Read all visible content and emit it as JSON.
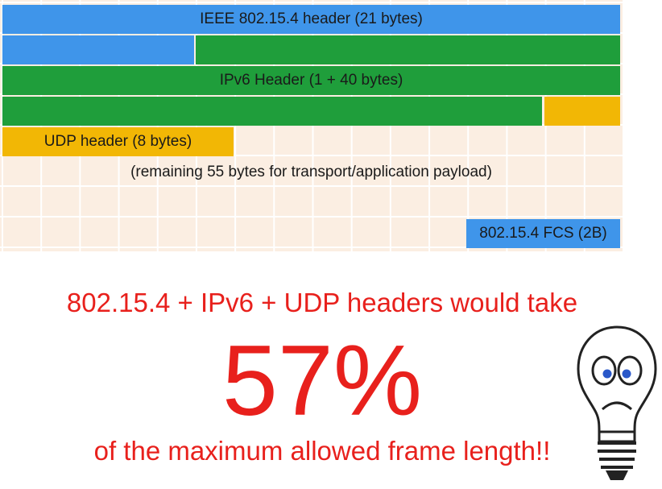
{
  "frame": {
    "rows": [
      {
        "name": "ieee-header-row",
        "segments": [
          {
            "name": "ieee-header-segment",
            "label": "IEEE 802.15.4 header (21 bytes)",
            "color": "#3f95ea"
          }
        ]
      },
      {
        "name": "ieee-ipv6-split-row",
        "segments": [
          {
            "name": "ieee-header-tail-segment",
            "label": "",
            "color": "#3f95ea"
          },
          {
            "name": "ipv6-header-start-segment",
            "label": "",
            "color": "#1f9e3b"
          }
        ]
      },
      {
        "name": "ipv6-header-row",
        "segments": [
          {
            "name": "ipv6-header-segment",
            "label": "IPv6 Header (1 + 40 bytes)",
            "color": "#1f9e3b"
          }
        ]
      },
      {
        "name": "ipv6-udp-split-row",
        "segments": [
          {
            "name": "ipv6-header-tail-segment",
            "label": "",
            "color": "#1f9e3b"
          },
          {
            "name": "udp-header-start-segment",
            "label": "",
            "color": "#f2b705"
          }
        ]
      },
      {
        "name": "udp-header-row",
        "segments": [
          {
            "name": "udp-header-segment",
            "label": "UDP header (8 bytes)",
            "color": "#f2b705"
          }
        ]
      },
      {
        "name": "payload-row",
        "segments": [
          {
            "name": "payload-label",
            "label": "(remaining 55 bytes for transport/application payload)",
            "color": ""
          }
        ]
      },
      {
        "name": "empty-row",
        "segments": []
      },
      {
        "name": "fcs-row",
        "segments": [
          {
            "name": "fcs-segment",
            "label": "802.15.4 FCS (2B)",
            "color": "#3f95ea"
          }
        ]
      }
    ]
  },
  "message": {
    "line1": "802.15.4 + IPv6 + UDP headers would take",
    "percent": "57%",
    "line2": "of the maximum allowed frame length!!"
  },
  "colors": {
    "ieee_blue": "#3f95ea",
    "ipv6_green": "#1f9e3b",
    "udp_gold": "#f2b705",
    "payload_bg": "#fbeee2",
    "message_red": "#e8201c"
  },
  "icons": {
    "bulb": "sad-light-bulb-icon"
  }
}
